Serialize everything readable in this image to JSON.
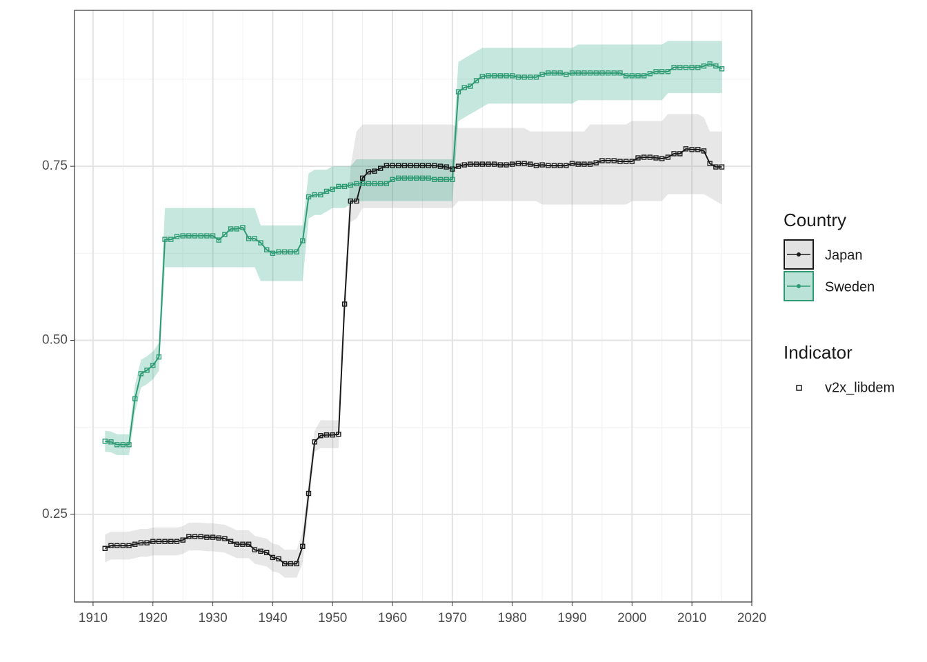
{
  "chart_data": {
    "type": "line",
    "legend_title": "Country",
    "indicator_title": "Indicator",
    "indicator": "v2x_libdem",
    "x": [
      1912,
      1913,
      1914,
      1915,
      1916,
      1917,
      1918,
      1919,
      1920,
      1921,
      1922,
      1923,
      1924,
      1925,
      1926,
      1927,
      1928,
      1929,
      1930,
      1931,
      1932,
      1933,
      1934,
      1935,
      1936,
      1937,
      1938,
      1939,
      1940,
      1941,
      1942,
      1943,
      1944,
      1945,
      1946,
      1947,
      1948,
      1949,
      1950,
      1951,
      1952,
      1953,
      1954,
      1955,
      1956,
      1957,
      1958,
      1959,
      1960,
      1961,
      1962,
      1963,
      1964,
      1965,
      1966,
      1967,
      1968,
      1969,
      1970,
      1971,
      1972,
      1973,
      1974,
      1975,
      1976,
      1977,
      1978,
      1979,
      1980,
      1981,
      1982,
      1983,
      1984,
      1985,
      1986,
      1987,
      1988,
      1989,
      1990,
      1991,
      1992,
      1993,
      1994,
      1995,
      1996,
      1997,
      1998,
      1999,
      2000,
      2001,
      2002,
      2003,
      2004,
      2005,
      2006,
      2007,
      2008,
      2009,
      2010,
      2011,
      2012,
      2013,
      2014,
      2015
    ],
    "series": [
      {
        "name": "Japan",
        "color": "#1a1a1a",
        "band_color": "#9e9e9e",
        "values": [
          0.201,
          0.205,
          0.205,
          0.205,
          0.205,
          0.207,
          0.209,
          0.209,
          0.211,
          0.211,
          0.211,
          0.211,
          0.211,
          0.213,
          0.218,
          0.218,
          0.218,
          0.217,
          0.217,
          0.216,
          0.215,
          0.211,
          0.207,
          0.207,
          0.207,
          0.199,
          0.197,
          0.195,
          0.188,
          0.186,
          0.179,
          0.179,
          0.179,
          0.204,
          0.28,
          0.354,
          0.363,
          0.364,
          0.364,
          0.365,
          0.552,
          0.7,
          0.7,
          0.733,
          0.742,
          0.743,
          0.747,
          0.751,
          0.751,
          0.751,
          0.751,
          0.751,
          0.751,
          0.751,
          0.751,
          0.751,
          0.75,
          0.749,
          0.746,
          0.75,
          0.752,
          0.753,
          0.753,
          0.753,
          0.753,
          0.753,
          0.752,
          0.752,
          0.753,
          0.754,
          0.754,
          0.753,
          0.751,
          0.752,
          0.751,
          0.751,
          0.751,
          0.751,
          0.754,
          0.753,
          0.753,
          0.753,
          0.755,
          0.758,
          0.758,
          0.758,
          0.757,
          0.757,
          0.757,
          0.762,
          0.763,
          0.763,
          0.762,
          0.761,
          0.763,
          0.768,
          0.768,
          0.775,
          0.774,
          0.774,
          0.772,
          0.754,
          0.749,
          0.749
        ],
        "lower": [
          0.181,
          0.185,
          0.185,
          0.185,
          0.185,
          0.187,
          0.189,
          0.189,
          0.191,
          0.191,
          0.191,
          0.191,
          0.191,
          0.193,
          0.198,
          0.198,
          0.198,
          0.197,
          0.197,
          0.196,
          0.195,
          0.191,
          0.187,
          0.187,
          0.187,
          0.179,
          0.177,
          0.175,
          0.168,
          0.166,
          0.159,
          0.159,
          0.159,
          0.18,
          0.26,
          0.34,
          0.345,
          0.345,
          0.345,
          0.345,
          0.53,
          0.67,
          0.675,
          0.69,
          0.69,
          0.69,
          0.69,
          0.69,
          0.69,
          0.69,
          0.69,
          0.69,
          0.69,
          0.69,
          0.69,
          0.69,
          0.69,
          0.69,
          0.69,
          0.7,
          0.7,
          0.7,
          0.7,
          0.7,
          0.7,
          0.7,
          0.7,
          0.7,
          0.7,
          0.7,
          0.7,
          0.7,
          0.7,
          0.695,
          0.695,
          0.695,
          0.695,
          0.695,
          0.695,
          0.695,
          0.695,
          0.695,
          0.695,
          0.695,
          0.695,
          0.695,
          0.695,
          0.695,
          0.7,
          0.7,
          0.7,
          0.7,
          0.7,
          0.7,
          0.71,
          0.71,
          0.71,
          0.71,
          0.71,
          0.71,
          0.71,
          0.705,
          0.7,
          0.695
        ],
        "upper": [
          0.221,
          0.225,
          0.225,
          0.225,
          0.225,
          0.227,
          0.229,
          0.229,
          0.231,
          0.231,
          0.231,
          0.231,
          0.231,
          0.233,
          0.238,
          0.238,
          0.238,
          0.237,
          0.237,
          0.236,
          0.235,
          0.231,
          0.227,
          0.227,
          0.227,
          0.219,
          0.217,
          0.215,
          0.208,
          0.206,
          0.199,
          0.199,
          0.199,
          0.225,
          0.3,
          0.37,
          0.385,
          0.385,
          0.385,
          0.385,
          0.57,
          0.75,
          0.8,
          0.81,
          0.81,
          0.81,
          0.81,
          0.81,
          0.81,
          0.81,
          0.81,
          0.81,
          0.81,
          0.81,
          0.81,
          0.81,
          0.81,
          0.81,
          0.81,
          0.805,
          0.805,
          0.805,
          0.805,
          0.805,
          0.805,
          0.805,
          0.805,
          0.805,
          0.805,
          0.805,
          0.805,
          0.8,
          0.8,
          0.8,
          0.8,
          0.8,
          0.8,
          0.8,
          0.8,
          0.8,
          0.8,
          0.81,
          0.81,
          0.81,
          0.81,
          0.81,
          0.81,
          0.81,
          0.815,
          0.815,
          0.815,
          0.815,
          0.815,
          0.815,
          0.825,
          0.825,
          0.825,
          0.825,
          0.825,
          0.825,
          0.82,
          0.8,
          0.8,
          0.8
        ]
      },
      {
        "name": "Sweden",
        "color": "#2e9a73",
        "band_color": "#1b9e77",
        "values": [
          0.355,
          0.354,
          0.35,
          0.35,
          0.35,
          0.416,
          0.452,
          0.457,
          0.464,
          0.476,
          0.645,
          0.645,
          0.649,
          0.65,
          0.65,
          0.65,
          0.65,
          0.65,
          0.65,
          0.644,
          0.652,
          0.66,
          0.66,
          0.662,
          0.646,
          0.646,
          0.64,
          0.63,
          0.625,
          0.627,
          0.627,
          0.627,
          0.627,
          0.643,
          0.706,
          0.709,
          0.709,
          0.714,
          0.717,
          0.721,
          0.721,
          0.723,
          0.725,
          0.725,
          0.725,
          0.725,
          0.725,
          0.725,
          0.731,
          0.733,
          0.733,
          0.733,
          0.733,
          0.733,
          0.733,
          0.731,
          0.731,
          0.731,
          0.731,
          0.857,
          0.863,
          0.865,
          0.873,
          0.879,
          0.88,
          0.88,
          0.88,
          0.88,
          0.88,
          0.878,
          0.878,
          0.878,
          0.878,
          0.882,
          0.884,
          0.884,
          0.884,
          0.882,
          0.884,
          0.884,
          0.884,
          0.884,
          0.884,
          0.884,
          0.884,
          0.884,
          0.884,
          0.88,
          0.88,
          0.88,
          0.88,
          0.883,
          0.886,
          0.886,
          0.886,
          0.892,
          0.892,
          0.892,
          0.892,
          0.892,
          0.894,
          0.897,
          0.894,
          0.89
        ],
        "lower": [
          0.34,
          0.339,
          0.335,
          0.335,
          0.335,
          0.396,
          0.432,
          0.437,
          0.444,
          0.456,
          0.605,
          0.605,
          0.605,
          0.605,
          0.605,
          0.605,
          0.605,
          0.605,
          0.605,
          0.605,
          0.605,
          0.605,
          0.605,
          0.605,
          0.605,
          0.605,
          0.585,
          0.585,
          0.585,
          0.585,
          0.585,
          0.585,
          0.585,
          0.585,
          0.675,
          0.68,
          0.68,
          0.685,
          0.69,
          0.69,
          0.69,
          0.695,
          0.7,
          0.7,
          0.7,
          0.7,
          0.7,
          0.7,
          0.7,
          0.7,
          0.7,
          0.7,
          0.7,
          0.7,
          0.7,
          0.7,
          0.7,
          0.7,
          0.7,
          0.815,
          0.82,
          0.825,
          0.83,
          0.835,
          0.84,
          0.84,
          0.84,
          0.84,
          0.84,
          0.84,
          0.84,
          0.84,
          0.84,
          0.84,
          0.84,
          0.84,
          0.84,
          0.84,
          0.84,
          0.845,
          0.845,
          0.845,
          0.845,
          0.845,
          0.845,
          0.845,
          0.845,
          0.845,
          0.845,
          0.845,
          0.845,
          0.845,
          0.845,
          0.845,
          0.855,
          0.855,
          0.855,
          0.855,
          0.855,
          0.855,
          0.855,
          0.855,
          0.855,
          0.855
        ],
        "upper": [
          0.37,
          0.369,
          0.365,
          0.365,
          0.365,
          0.436,
          0.472,
          0.477,
          0.484,
          0.496,
          0.69,
          0.69,
          0.69,
          0.69,
          0.69,
          0.69,
          0.69,
          0.69,
          0.69,
          0.69,
          0.69,
          0.69,
          0.69,
          0.69,
          0.69,
          0.69,
          0.665,
          0.665,
          0.665,
          0.665,
          0.665,
          0.665,
          0.665,
          0.665,
          0.74,
          0.745,
          0.745,
          0.745,
          0.75,
          0.75,
          0.75,
          0.75,
          0.76,
          0.76,
          0.76,
          0.76,
          0.76,
          0.76,
          0.76,
          0.76,
          0.76,
          0.76,
          0.76,
          0.76,
          0.76,
          0.76,
          0.76,
          0.76,
          0.76,
          0.9,
          0.905,
          0.91,
          0.915,
          0.92,
          0.92,
          0.92,
          0.92,
          0.92,
          0.92,
          0.92,
          0.92,
          0.92,
          0.92,
          0.92,
          0.92,
          0.92,
          0.92,
          0.92,
          0.92,
          0.925,
          0.925,
          0.925,
          0.925,
          0.925,
          0.925,
          0.925,
          0.925,
          0.925,
          0.925,
          0.925,
          0.925,
          0.925,
          0.925,
          0.925,
          0.93,
          0.93,
          0.93,
          0.93,
          0.93,
          0.93,
          0.93,
          0.93,
          0.93,
          0.93
        ]
      }
    ],
    "xlim": [
      1906.9,
      2020
    ],
    "xticks": [
      1910,
      1920,
      1930,
      1940,
      1950,
      1960,
      1970,
      1980,
      1990,
      2000,
      2010,
      2020
    ],
    "ylim": [
      0.124,
      0.974
    ],
    "yticks": [
      0.25,
      {
        "value": 0.5,
        "label": "0.50"
      },
      0.75
    ],
    "grid": true
  }
}
